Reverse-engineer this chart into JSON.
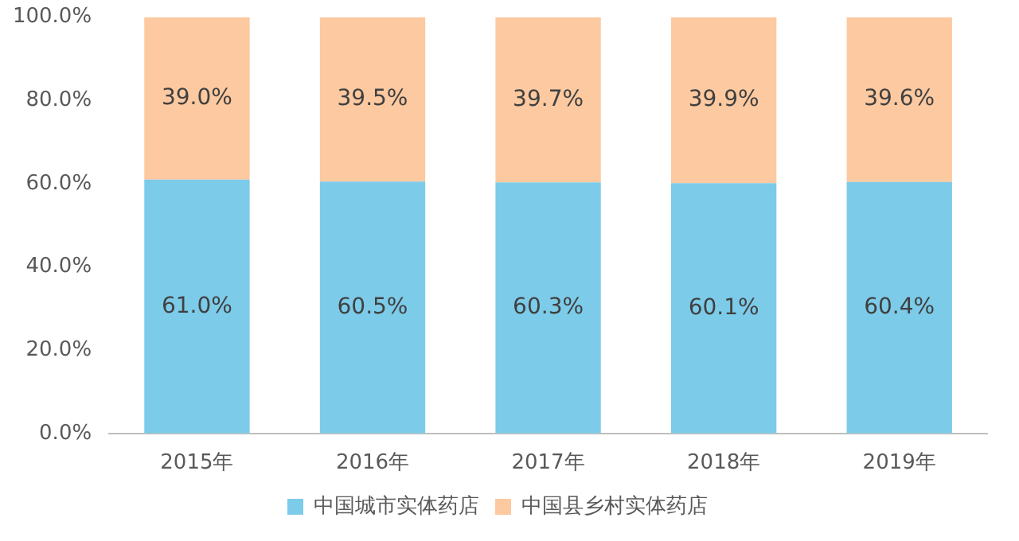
{
  "chart_data": {
    "type": "bar",
    "stacked": true,
    "categories": [
      "2015年",
      "2016年",
      "2017年",
      "2018年",
      "2019年"
    ],
    "series": [
      {
        "name": "中国城市实体药店",
        "color": "#7ccbe9",
        "values": [
          61.0,
          60.5,
          60.3,
          60.1,
          60.4
        ],
        "value_labels": [
          "61.0%",
          "60.5%",
          "60.3%",
          "60.1%",
          "60.4%"
        ]
      },
      {
        "name": "中国县乡村实体药店",
        "color": "#fcc9a0",
        "values": [
          39.0,
          39.5,
          39.7,
          39.9,
          39.6
        ],
        "value_labels": [
          "39.0%",
          "39.5%",
          "39.7%",
          "39.9%",
          "39.6%"
        ]
      }
    ],
    "ylim": [
      0,
      100
    ],
    "yticks": [
      {
        "value": 0,
        "label": "0.0%"
      },
      {
        "value": 20,
        "label": "20.0%"
      },
      {
        "value": 40,
        "label": "40.0%"
      },
      {
        "value": 60,
        "label": "60.0%"
      },
      {
        "value": 80,
        "label": "80.0%"
      },
      {
        "value": 100,
        "label": "100.0%"
      }
    ],
    "legend": "bottom"
  }
}
